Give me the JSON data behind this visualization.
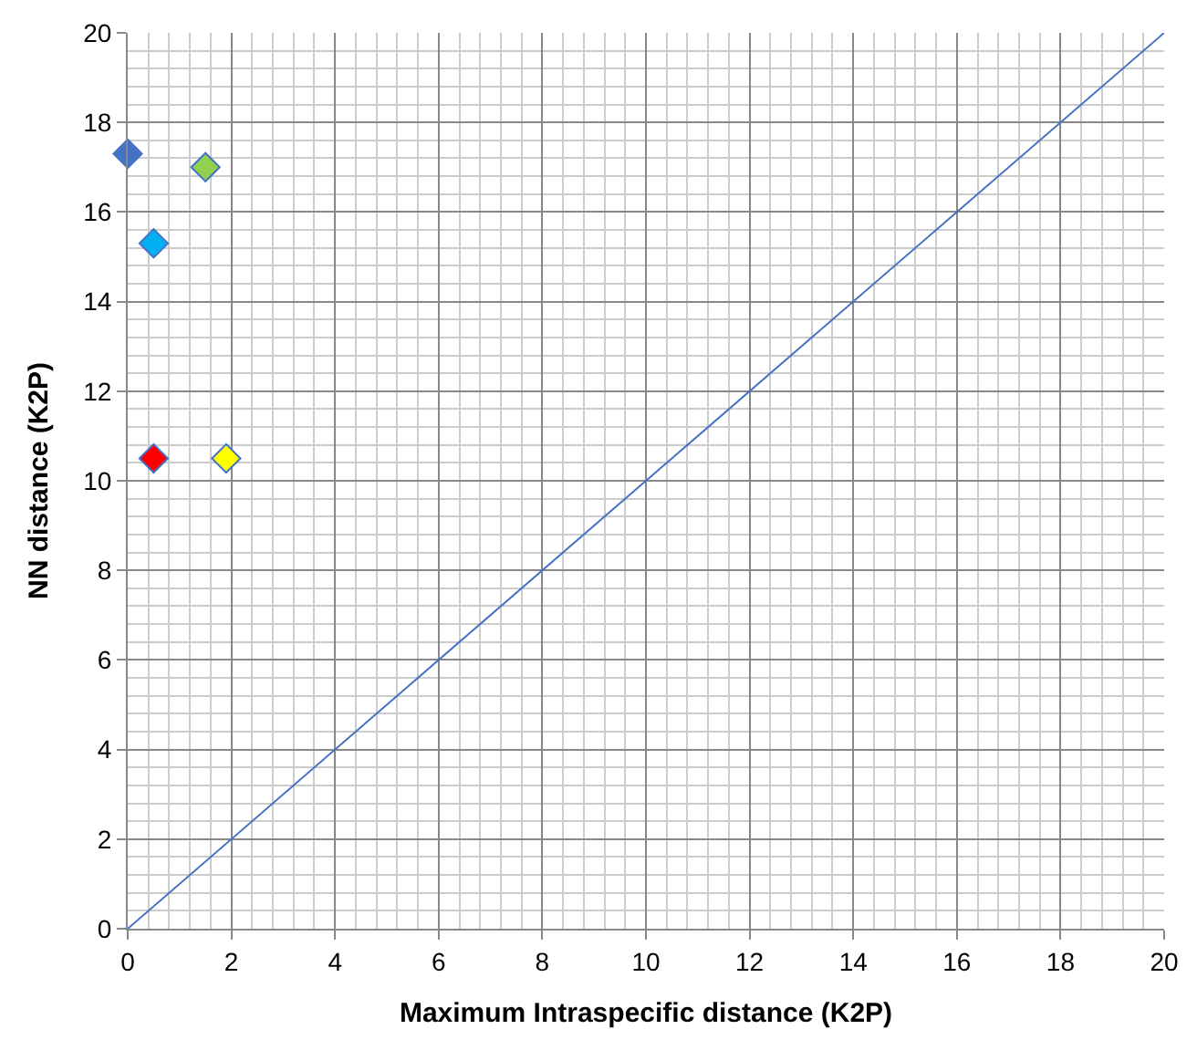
{
  "chart_data": {
    "type": "scatter",
    "xlabel": "Maximum Intraspecific distance (K2P)",
    "ylabel": "NN distance (K2P)",
    "xlim": [
      0,
      20
    ],
    "ylim": [
      0,
      20
    ],
    "xticks": [
      0,
      2,
      4,
      6,
      8,
      10,
      12,
      14,
      16,
      18,
      20
    ],
    "yticks": [
      0,
      2,
      4,
      6,
      8,
      10,
      12,
      14,
      16,
      18,
      20
    ],
    "grid": true,
    "marker": "diamond",
    "series": [
      {
        "x": [
          0,
          1.5,
          0.5,
          0.5,
          1.9
        ],
        "values": [
          17.3,
          17.0,
          15.3,
          10.5,
          10.5
        ],
        "colors": [
          "#4472c4",
          "#92d050",
          "#00b0f0",
          "#ff0000",
          "#ffff00"
        ]
      },
      {
        "type": "line",
        "x": [
          0,
          20
        ],
        "values": [
          0,
          20
        ],
        "color": "#4472c4",
        "marker": "none",
        "line_style": "solid"
      }
    ]
  }
}
